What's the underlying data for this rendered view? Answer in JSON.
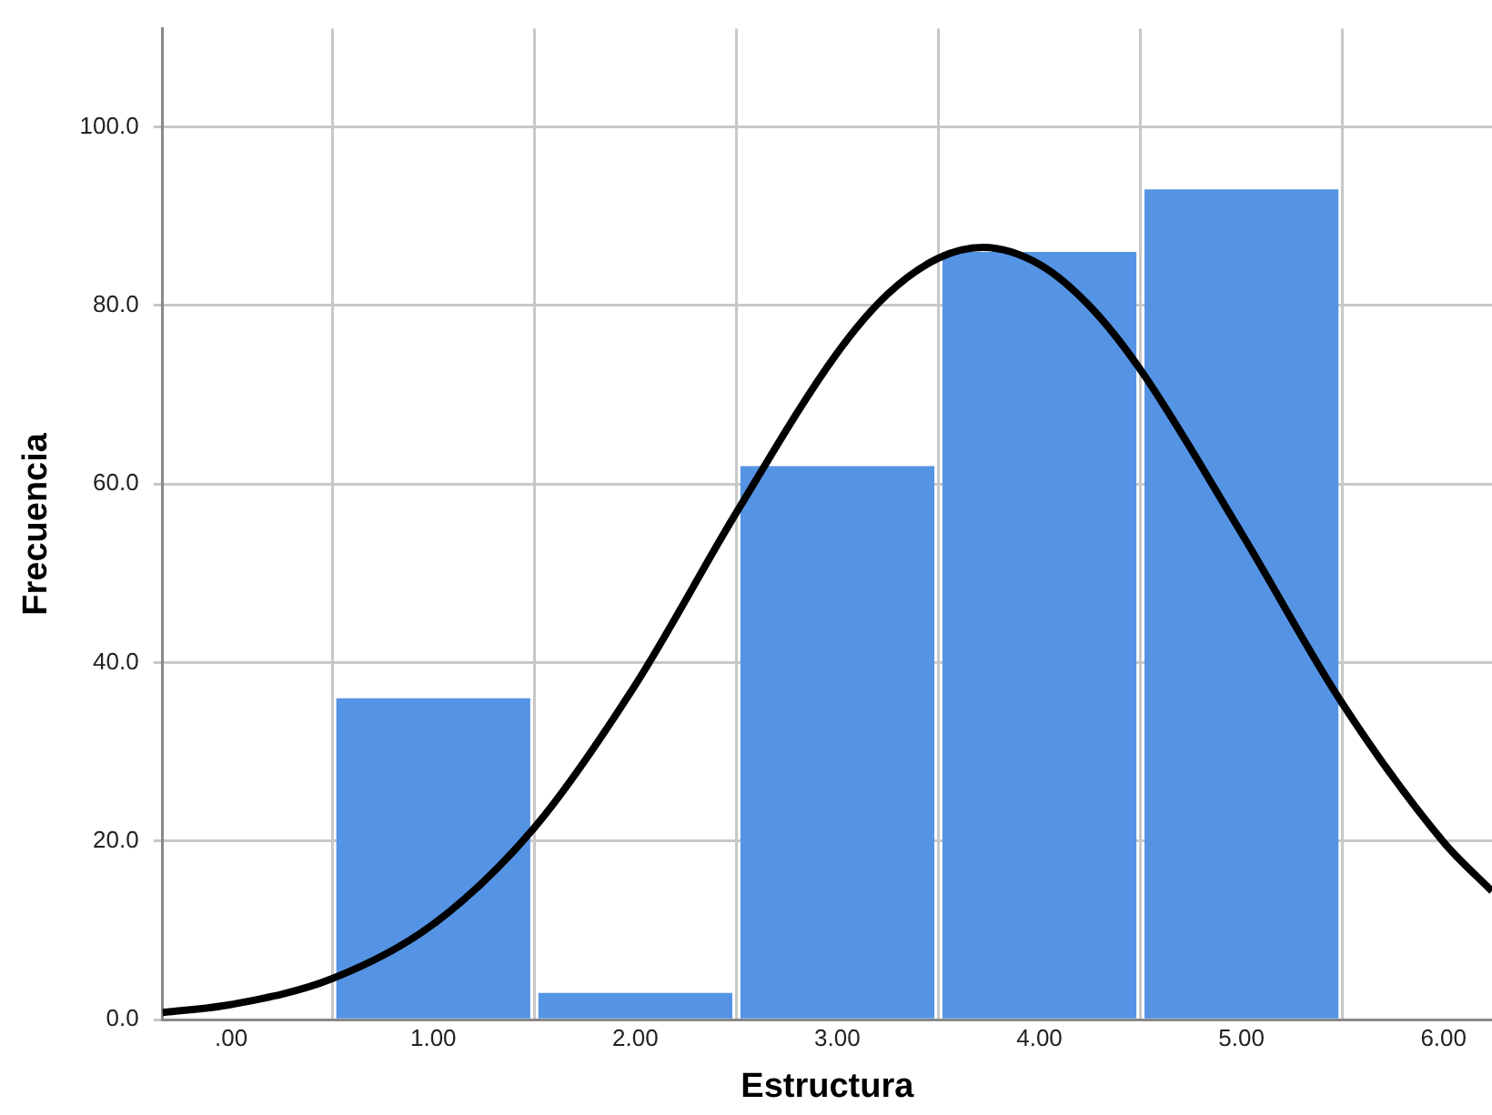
{
  "chart_data": {
    "type": "histogram",
    "xlabel": "Estructura",
    "ylabel": "Frecuencia",
    "bins": [
      0.5,
      1.5,
      2.5,
      3.5,
      4.5,
      5.5
    ],
    "values": [
      36,
      3,
      62,
      86,
      93
    ],
    "color": "#5594e4",
    "series": [
      {
        "type": "line",
        "color": "#000000",
        "marker": "none",
        "x": [
          -0.34,
          0,
          0.5,
          1,
          1.5,
          2,
          2.5,
          3,
          3.25,
          3.5,
          3.72,
          4,
          4.25,
          4.5,
          5,
          5.5,
          6,
          6.24
        ],
        "values": [
          0.8,
          1.7,
          4.6,
          10.7,
          21.5,
          37.5,
          56.8,
          74.7,
          81.3,
          85.3,
          86.5,
          84.6,
          79.9,
          72.8,
          54.5,
          35.4,
          19.9,
          14.4
        ]
      }
    ],
    "xlim": [
      -0.34,
      6.24
    ],
    "ylim": [
      0,
      111
    ],
    "xticks": [
      {
        "value": 0,
        "label": ".00"
      },
      {
        "value": 1,
        "label": "1.00"
      },
      {
        "value": 2,
        "label": "2.00"
      },
      {
        "value": 3,
        "label": "3.00"
      },
      {
        "value": 4,
        "label": "4.00"
      },
      {
        "value": 5,
        "label": "5.00"
      },
      {
        "value": 6,
        "label": "6.00"
      }
    ],
    "yticks": [
      {
        "value": 0,
        "label": "0.0"
      },
      {
        "value": 20,
        "label": "20.0"
      },
      {
        "value": 40,
        "label": "40.0"
      },
      {
        "value": 60,
        "label": "60.0"
      },
      {
        "value": 80,
        "label": "80.0"
      },
      {
        "value": 100,
        "label": "100.0"
      }
    ],
    "grid": true
  }
}
